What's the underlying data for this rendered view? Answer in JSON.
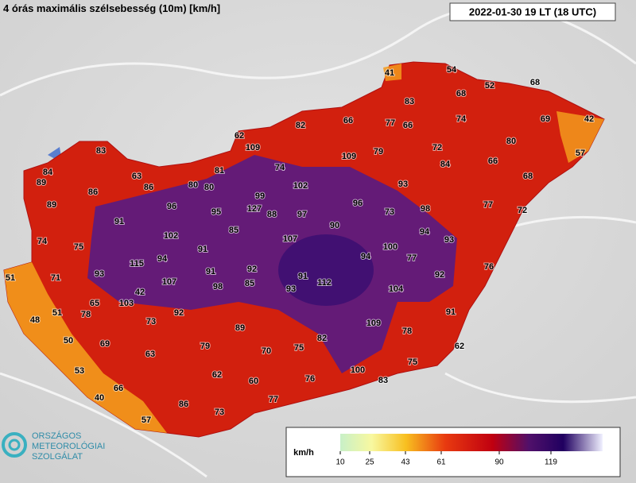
{
  "header": {
    "title": "4 órás maximális szélsebesség (10m) [km/h]",
    "timestamp": "2022-01-30 19 LT (18 UTC)"
  },
  "stations": [
    41,
    54,
    52,
    68,
    83,
    68,
    82,
    66,
    77,
    66,
    74,
    69,
    42,
    62,
    109,
    83,
    79,
    72,
    80,
    57,
    109,
    84,
    66,
    74,
    63,
    81,
    84,
    89,
    86,
    80,
    80,
    102,
    93,
    68,
    86,
    99,
    96,
    95,
    127,
    88,
    97,
    96,
    73,
    98,
    77,
    72,
    89,
    91,
    85,
    90,
    94,
    93,
    102,
    107,
    100,
    74,
    75,
    91,
    94,
    77,
    76,
    115,
    94,
    91,
    92,
    93,
    71,
    51,
    107,
    98,
    85,
    91,
    112,
    92,
    93,
    104,
    42,
    65,
    103,
    51,
    78,
    92,
    91,
    48,
    73,
    89,
    109,
    78,
    50,
    69,
    82,
    79,
    70,
    75,
    62,
    63,
    75,
    53,
    62,
    100,
    60,
    76,
    83,
    66,
    40,
    77,
    86,
    57,
    73
  ],
  "legend": {
    "unit": "km/h",
    "ticks": [
      10,
      25,
      43,
      61,
      90,
      119
    ]
  },
  "logo": {
    "lines": [
      "ORSZÁGOS",
      "METEOROLÓGIAI",
      "SZOLGÁLAT"
    ]
  }
}
